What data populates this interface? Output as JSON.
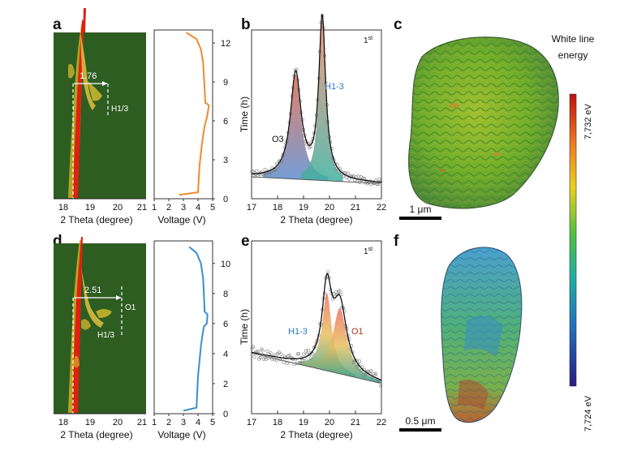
{
  "panels": {
    "a": {
      "label": "a",
      "xlabel": "2 Theta (degree)",
      "xticks": [
        "18",
        "19",
        "20",
        "21"
      ],
      "annotation_value": "1.76",
      "phase_label": "H1/3"
    },
    "a_voltage": {
      "xlabel": "Voltage (V)",
      "xticks": [
        "1",
        "2",
        "3",
        "4",
        "5"
      ],
      "ylabel": "Time (h)",
      "yticks": [
        "0",
        "3",
        "6",
        "9",
        "12"
      ]
    },
    "b": {
      "label": "b",
      "cycle": "1",
      "cycle_sup": "st",
      "xlabel": "2 Theta (degree)",
      "xticks": [
        "17",
        "18",
        "19",
        "20",
        "21",
        "22"
      ],
      "peak1_label": "O3",
      "peak2_label": "H1-3"
    },
    "c": {
      "label": "c",
      "scale_text": "1 μm"
    },
    "d": {
      "label": "d",
      "xlabel": "2 Theta (degree)",
      "xticks": [
        "18",
        "19",
        "20",
        "21"
      ],
      "annotation_value": "2.51",
      "phase_label_1": "O1",
      "phase_label_2": "H1/3"
    },
    "d_voltage": {
      "xlabel": "Voltage (V)",
      "xticks": [
        "1",
        "2",
        "3",
        "4",
        "5"
      ],
      "ylabel": "Time (h)",
      "yticks": [
        "0",
        "2",
        "4",
        "6",
        "8",
        "10"
      ]
    },
    "e": {
      "label": "e",
      "cycle": "1",
      "cycle_sup": "st",
      "xlabel": "2 Theta (degree)",
      "xticks": [
        "17",
        "18",
        "19",
        "20",
        "21",
        "22"
      ],
      "peak1_label": "H1-3",
      "peak2_label": "O1"
    },
    "f": {
      "label": "f",
      "scale_text": "0.5 μm"
    }
  },
  "colorbar": {
    "title_line1": "White line",
    "title_line2": "energy",
    "max_label": "7,732 eV",
    "min_label": "7,724 eV"
  },
  "colors": {
    "voltage_a": "#ef8a2e",
    "voltage_d": "#3a8fd0",
    "contour_bg": "#2e5d22",
    "label_blue": "#2a79c0",
    "label_red": "#b03020"
  },
  "chart_data": [
    {
      "type": "line",
      "panel": "a-voltage",
      "xlabel": "Voltage (V)",
      "ylabel": "Time (h)",
      "xlim": [
        1,
        5
      ],
      "ylim": [
        0,
        13
      ],
      "x": [
        2.7,
        4.0,
        4.05,
        4.1,
        4.2,
        4.3,
        4.45,
        4.6,
        4.75,
        4.5,
        4.45,
        4.4,
        4.35,
        4.2,
        3.9,
        3.2
      ],
      "y": [
        0.3,
        0.5,
        1.5,
        2.5,
        3.5,
        4.5,
        5.6,
        6.2,
        7.2,
        7.4,
        8.5,
        9.5,
        10.5,
        11.5,
        12.3,
        12.8
      ]
    },
    {
      "type": "line",
      "panel": "d-voltage",
      "xlabel": "Voltage (V)",
      "ylabel": "Time (h)",
      "xlim": [
        1,
        5
      ],
      "ylim": [
        0,
        11.5
      ],
      "x": [
        3.0,
        3.9,
        3.95,
        4.0,
        4.1,
        4.2,
        4.3,
        4.4,
        4.6,
        4.65,
        4.45,
        4.4,
        4.35,
        4.2,
        3.9,
        3.4
      ],
      "y": [
        0.2,
        0.4,
        1.5,
        2.5,
        3.5,
        4.5,
        5.2,
        5.8,
        6.0,
        6.6,
        6.8,
        8.0,
        9.0,
        10.0,
        10.7,
        11.1
      ]
    },
    {
      "type": "scatter",
      "panel": "b",
      "xlabel": "2 Theta (degree)",
      "xlim": [
        17,
        22
      ],
      "peaks": [
        {
          "name": "O3",
          "center": 18.7,
          "height": 0.62,
          "width": 0.25
        },
        {
          "name": "H1-3",
          "center": 19.72,
          "height": 0.95,
          "width": 0.16
        }
      ]
    },
    {
      "type": "scatter",
      "panel": "e",
      "xlabel": "2 Theta (degree)",
      "xlim": [
        17,
        22
      ],
      "peaks": [
        {
          "name": "H1-3",
          "center": 19.9,
          "height": 0.45,
          "width": 0.22
        },
        {
          "name": "O1",
          "center": 20.4,
          "height": 0.38,
          "width": 0.32
        }
      ]
    }
  ]
}
